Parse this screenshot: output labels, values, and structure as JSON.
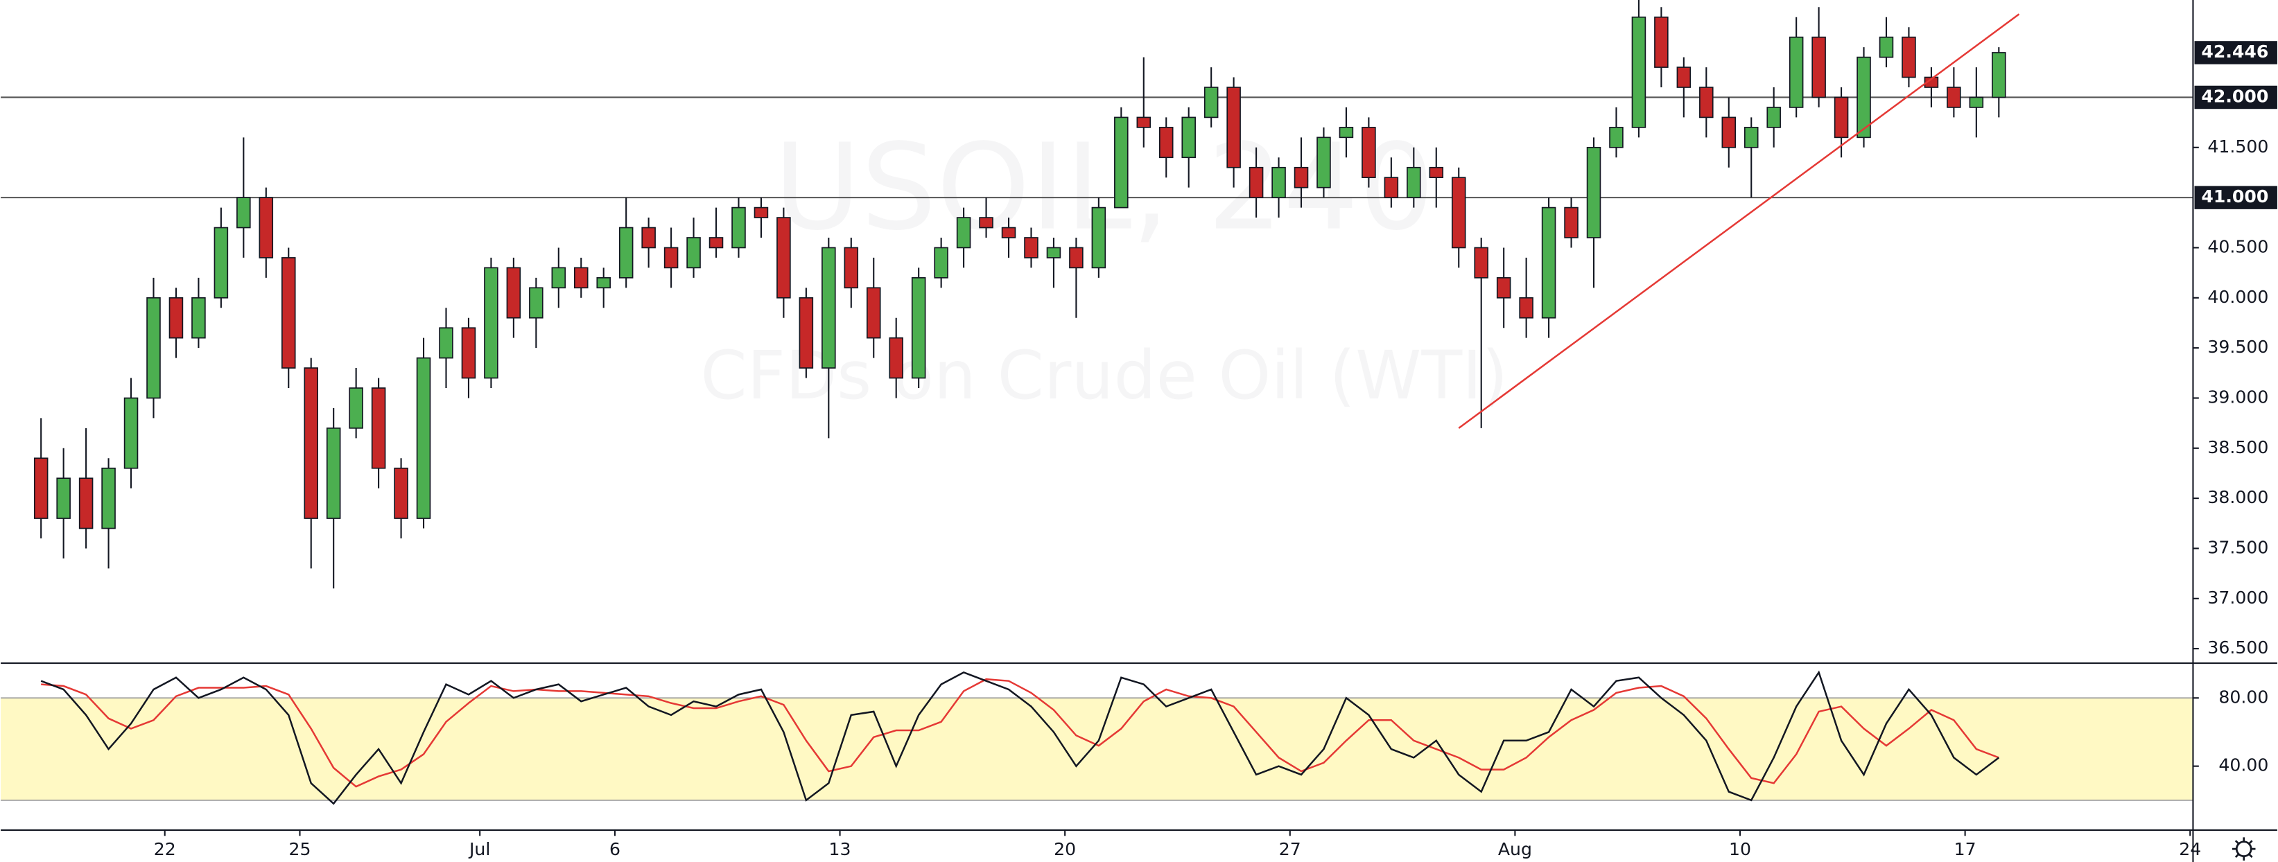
{
  "chart_data": {
    "type": "candlestick",
    "watermark": {
      "symbol": "USOIL, 240",
      "description": "CFDs on Crude Oil (WTI)"
    },
    "up_color": "#4caf50",
    "down_color": "#c62828",
    "xlim": [
      -1.29,
      96.13
    ],
    "xticks": [
      {
        "value": 6,
        "label": "22"
      },
      {
        "value": 12,
        "label": "25"
      },
      {
        "value": 20,
        "label": "Jul"
      },
      {
        "value": 26,
        "label": "6"
      },
      {
        "value": 36,
        "label": "13"
      },
      {
        "value": 46,
        "label": "20"
      },
      {
        "value": 56,
        "label": "27"
      },
      {
        "value": 66,
        "label": "Aug"
      },
      {
        "value": 76,
        "label": "10"
      },
      {
        "value": 86,
        "label": "17"
      },
      {
        "value": 96,
        "label": "24"
      }
    ],
    "ylim": [
      36.355,
      42.971
    ],
    "yticks": [
      {
        "value": 36.5,
        "label": "36.500"
      },
      {
        "value": 37,
        "label": "37.000"
      },
      {
        "value": 37.5,
        "label": "37.500"
      },
      {
        "value": 38,
        "label": "38.000"
      },
      {
        "value": 38.5,
        "label": "38.500"
      },
      {
        "value": 39,
        "label": "39.000"
      },
      {
        "value": 39.5,
        "label": "39.500"
      },
      {
        "value": 40,
        "label": "40.000"
      },
      {
        "value": 40.5,
        "label": "40.500"
      },
      {
        "value": 41.5,
        "label": "41.500"
      }
    ],
    "levels": [
      {
        "value": 42,
        "label": "42.000"
      },
      {
        "value": 41,
        "label": "41.000"
      }
    ],
    "last_price": 42.446,
    "trendline": {
      "color": "#e53935",
      "x": [
        63.5,
        88.4
      ],
      "y": [
        38.7,
        42.83
      ]
    },
    "open": [
      38.4,
      37.8,
      38.2,
      37.7,
      38.3,
      39.0,
      40.0,
      39.6,
      40.0,
      40.7,
      41.0,
      40.4,
      39.3,
      37.8,
      38.7,
      39.1,
      38.3,
      37.8,
      39.4,
      39.7,
      39.2,
      40.3,
      39.8,
      40.1,
      40.3,
      40.1,
      40.2,
      40.7,
      40.5,
      40.3,
      40.6,
      40.5,
      40.9,
      40.8,
      40.0,
      39.3,
      40.5,
      40.1,
      39.6,
      39.2,
      40.2,
      40.5,
      40.8,
      40.7,
      40.6,
      40.4,
      40.5,
      40.3,
      40.9,
      41.8,
      41.7,
      41.4,
      41.8,
      42.1,
      41.3,
      41.0,
      41.3,
      41.1,
      41.6,
      41.7,
      41.2,
      41.0,
      41.3,
      41.2,
      40.5,
      40.2,
      40.0,
      39.8,
      40.9,
      40.6,
      41.5,
      41.7,
      42.8,
      42.3,
      42.1,
      41.8,
      41.5,
      41.7,
      41.9,
      42.6,
      42.0,
      41.6,
      42.4,
      42.6,
      42.2,
      42.1,
      41.9,
      42.0
    ],
    "high": [
      38.8,
      38.5,
      38.7,
      38.4,
      39.2,
      40.2,
      40.1,
      40.2,
      40.9,
      41.6,
      41.1,
      40.5,
      39.4,
      38.9,
      39.3,
      39.2,
      38.4,
      39.6,
      39.9,
      39.8,
      40.4,
      40.4,
      40.2,
      40.5,
      40.4,
      40.3,
      41.0,
      40.8,
      40.7,
      40.8,
      40.9,
      41.0,
      41.0,
      40.9,
      40.1,
      40.6,
      40.6,
      40.4,
      39.8,
      40.3,
      40.6,
      40.9,
      41.0,
      40.8,
      40.7,
      40.6,
      40.6,
      41.0,
      41.9,
      42.4,
      41.8,
      41.9,
      42.3,
      42.2,
      41.5,
      41.4,
      41.6,
      41.7,
      41.9,
      41.8,
      41.4,
      41.5,
      41.5,
      41.3,
      40.6,
      40.5,
      40.4,
      41.0,
      41.0,
      41.6,
      41.9,
      43.0,
      42.9,
      42.4,
      42.3,
      42.0,
      41.8,
      42.1,
      42.8,
      42.9,
      42.1,
      42.5,
      42.8,
      42.7,
      42.3,
      42.3,
      42.3,
      42.5
    ],
    "low": [
      37.6,
      37.4,
      37.5,
      37.3,
      38.1,
      38.8,
      39.4,
      39.5,
      39.9,
      40.4,
      40.2,
      39.1,
      37.3,
      37.1,
      38.6,
      38.1,
      37.6,
      37.7,
      39.1,
      39.0,
      39.1,
      39.6,
      39.5,
      39.9,
      40.0,
      39.9,
      40.1,
      40.3,
      40.1,
      40.2,
      40.4,
      40.4,
      40.6,
      39.8,
      39.2,
      38.6,
      39.9,
      39.4,
      39.0,
      39.1,
      40.1,
      40.3,
      40.6,
      40.4,
      40.3,
      40.1,
      39.8,
      40.2,
      40.9,
      41.5,
      41.2,
      41.1,
      41.7,
      41.1,
      40.8,
      40.8,
      40.9,
      41.0,
      41.4,
      41.1,
      40.9,
      40.9,
      40.9,
      40.3,
      38.7,
      39.7,
      39.6,
      39.6,
      40.5,
      40.1,
      41.4,
      41.6,
      42.1,
      41.8,
      41.6,
      41.3,
      41.0,
      41.5,
      41.8,
      41.9,
      41.4,
      41.5,
      42.3,
      42.1,
      41.9,
      41.8,
      41.6,
      41.8
    ],
    "close": [
      37.8,
      38.2,
      37.7,
      38.3,
      39.0,
      40.0,
      39.6,
      40.0,
      40.7,
      41.0,
      40.4,
      39.3,
      37.8,
      38.7,
      39.1,
      38.3,
      37.8,
      39.4,
      39.7,
      39.2,
      40.3,
      39.8,
      40.1,
      40.3,
      40.1,
      40.2,
      40.7,
      40.5,
      40.3,
      40.6,
      40.5,
      40.9,
      40.8,
      40.0,
      39.3,
      40.5,
      40.1,
      39.6,
      39.2,
      40.2,
      40.5,
      40.8,
      40.7,
      40.6,
      40.4,
      40.5,
      40.3,
      40.9,
      41.8,
      41.7,
      41.4,
      41.8,
      42.1,
      41.3,
      41.0,
      41.3,
      41.1,
      41.6,
      41.7,
      41.2,
      41.0,
      41.3,
      41.2,
      40.5,
      40.2,
      40.0,
      39.8,
      40.9,
      40.6,
      41.5,
      41.7,
      42.8,
      42.3,
      42.1,
      41.8,
      41.5,
      41.7,
      41.9,
      42.6,
      42.0,
      41.6,
      42.4,
      42.6,
      42.2,
      42.1,
      41.9,
      42.0,
      42.446
    ],
    "indicator": {
      "type": "line",
      "ylim": [
        2.5,
        100.4
      ],
      "yticks": [
        {
          "value": 80,
          "label": "80.00"
        },
        {
          "value": 40,
          "label": "40.00"
        }
      ],
      "band": [
        20,
        80
      ],
      "band_color": "#fff9c4",
      "series": [
        {
          "color": "#131722",
          "values": [
            90,
            85,
            70,
            50,
            65,
            85,
            92,
            80,
            85,
            92,
            85,
            70,
            30,
            18,
            35,
            50,
            30,
            60,
            88,
            82,
            90,
            80,
            85,
            88,
            78,
            82,
            86,
            75,
            70,
            78,
            75,
            82,
            85,
            60,
            20,
            30,
            70,
            72,
            40,
            70,
            88,
            95,
            90,
            85,
            75,
            60,
            40,
            55,
            92,
            88,
            75,
            80,
            85,
            60,
            35,
            40,
            35,
            50,
            80,
            70,
            50,
            45,
            55,
            35,
            25,
            55,
            55,
            60,
            85,
            75,
            90,
            92,
            80,
            70,
            55,
            25,
            20,
            45,
            75,
            95,
            55,
            35,
            65,
            85,
            70,
            45,
            35,
            45
          ]
        },
        {
          "color": "#e53935",
          "values": [
            88,
            87,
            82,
            68,
            62,
            67,
            81,
            86,
            86,
            86,
            87,
            82,
            62,
            39,
            28,
            34,
            38,
            47,
            66,
            77,
            87,
            84,
            85,
            84,
            84,
            83,
            82,
            81,
            77,
            74,
            74,
            78,
            81,
            76,
            55,
            37,
            40,
            57,
            61,
            61,
            66,
            84,
            91,
            90,
            83,
            73,
            58,
            52,
            62,
            78,
            85,
            81,
            80,
            75,
            60,
            45,
            37,
            42,
            55,
            67,
            67,
            55,
            50,
            45,
            38,
            38,
            45,
            57,
            67,
            73,
            83,
            86,
            87,
            81,
            68,
            50,
            33,
            30,
            47,
            72,
            75,
            62,
            52,
            62,
            73,
            67,
            50,
            45
          ]
        }
      ]
    }
  }
}
